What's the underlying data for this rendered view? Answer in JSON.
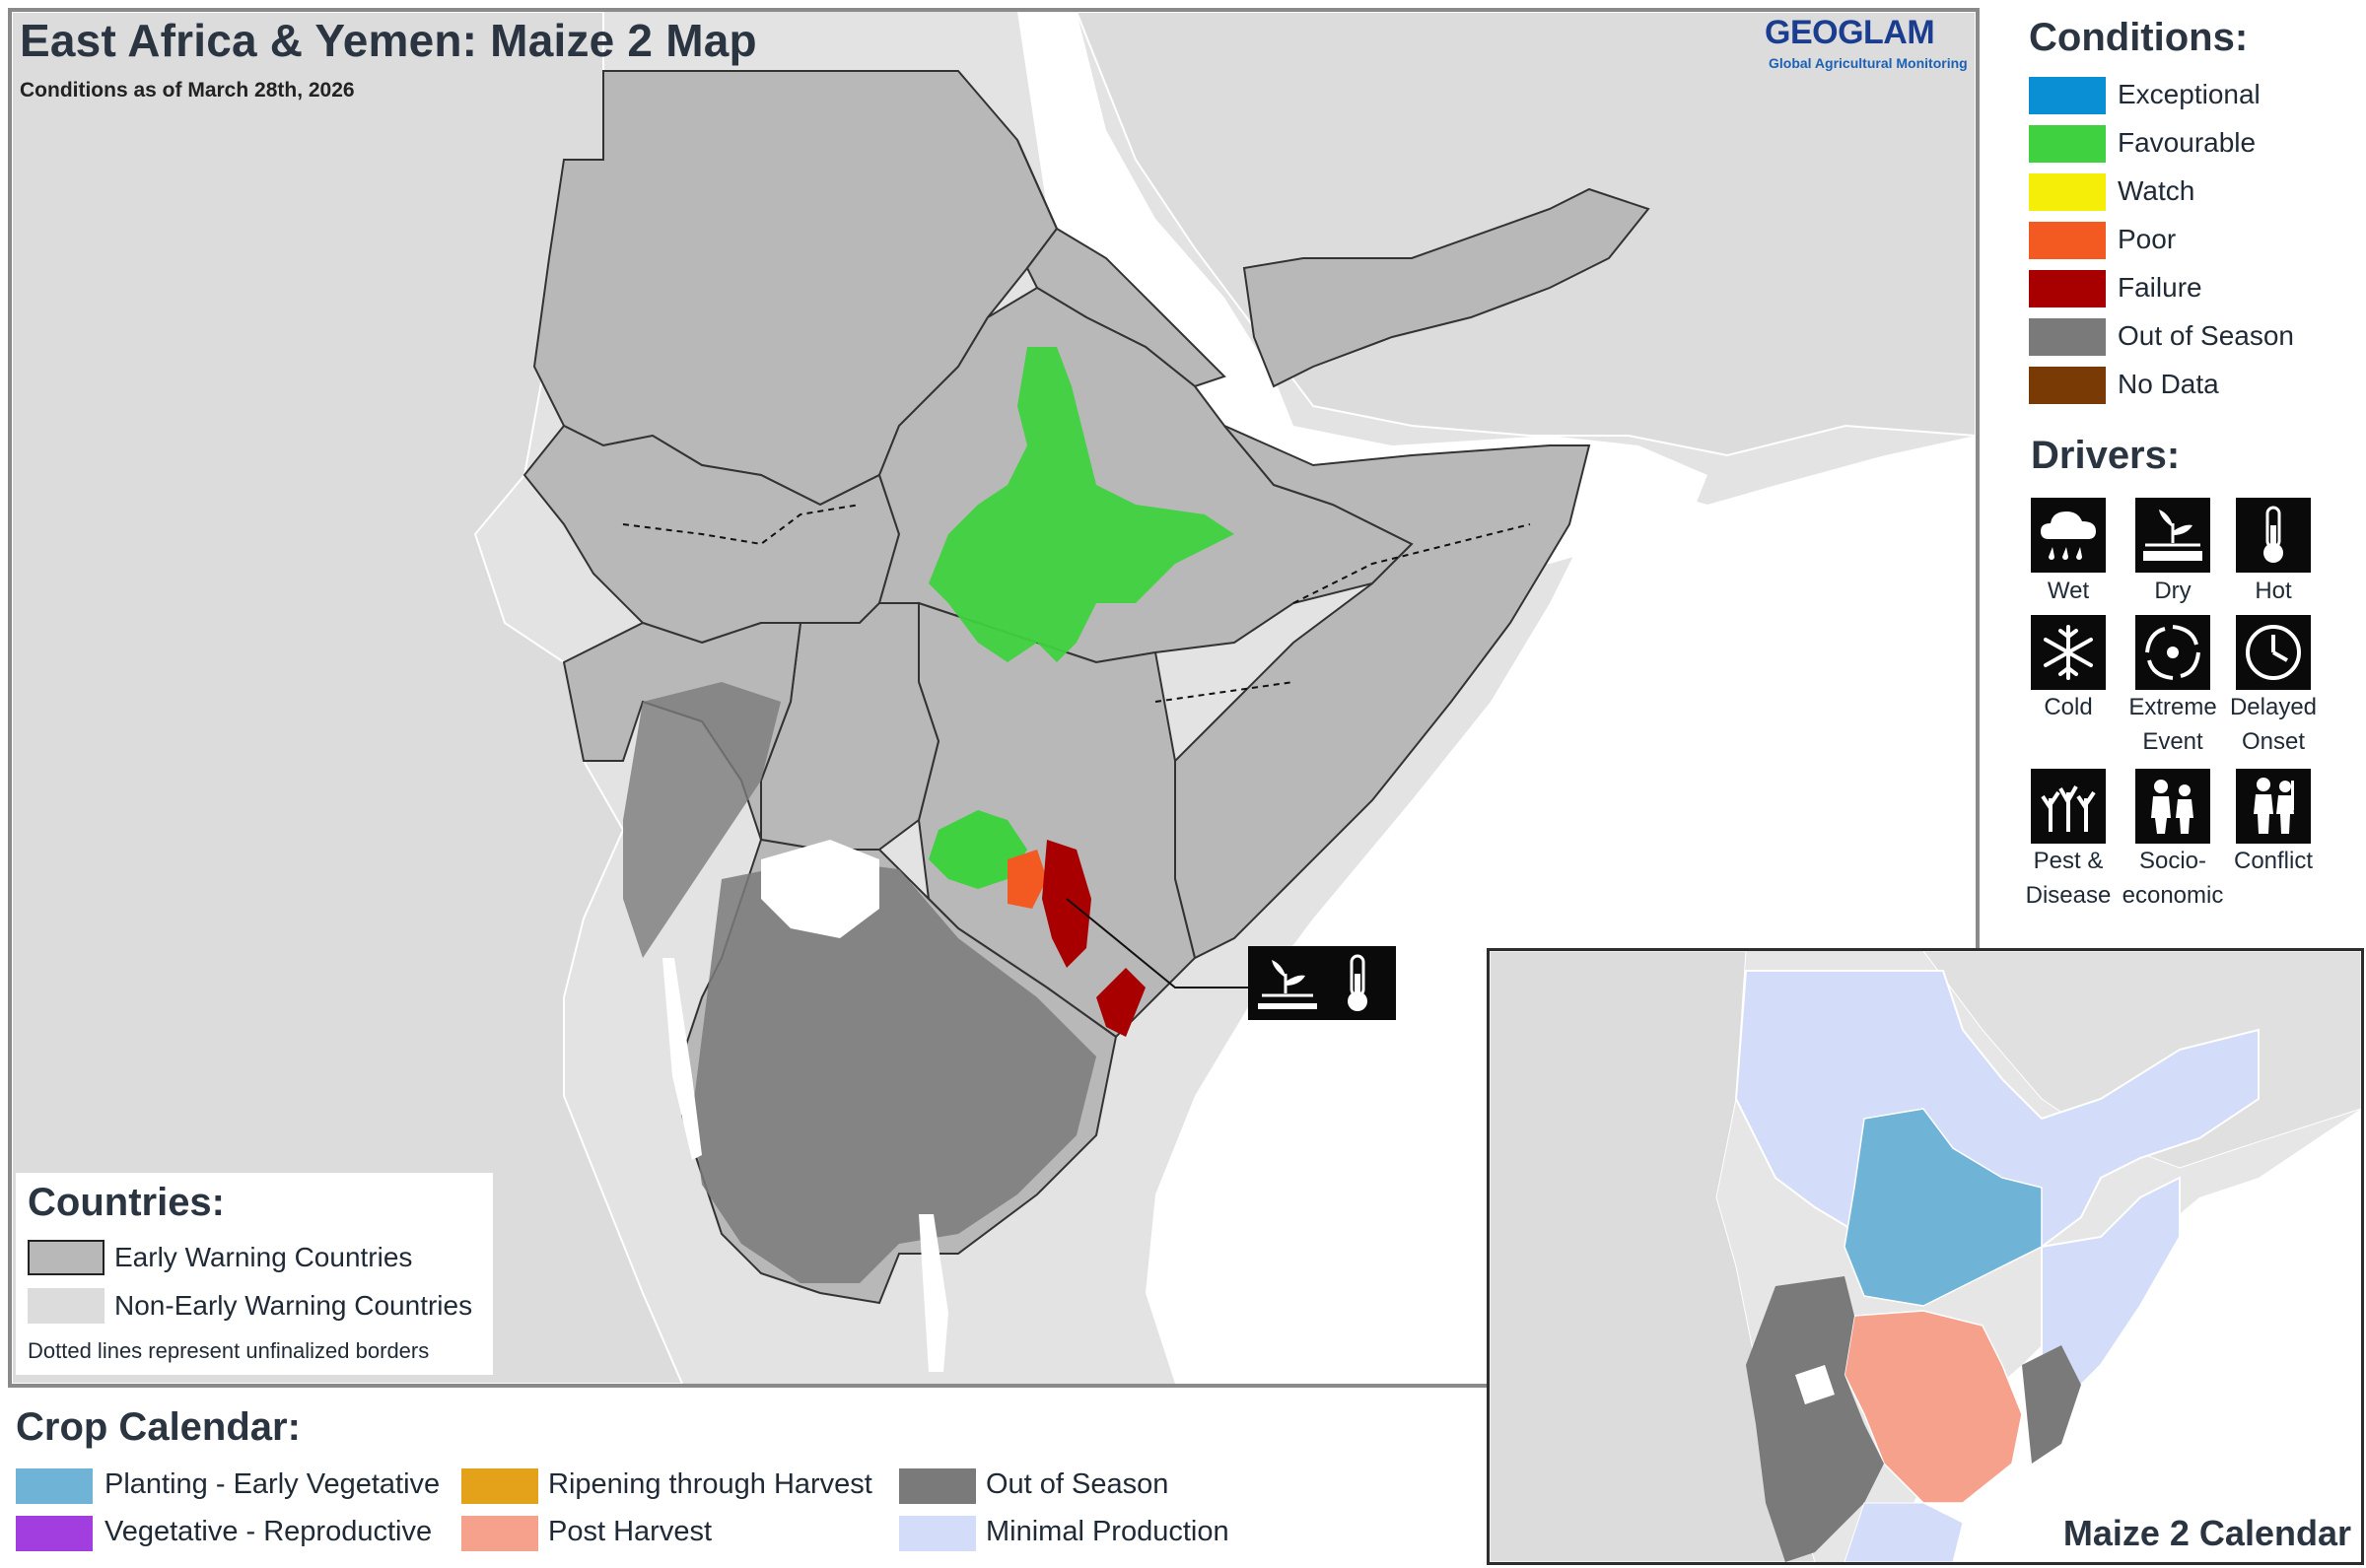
{
  "title": "East Africa & Yemen: Maize 2 Map",
  "subtitle": "Conditions as of March 28th, 2026",
  "logo": {
    "name": "GEOGLAM",
    "tagline": "Global Agricultural Monitoring"
  },
  "conditions": {
    "heading": "Conditions:",
    "items": [
      {
        "label": "Exceptional",
        "color": "#0a8fd4"
      },
      {
        "label": "Favourable",
        "color": "#3fd13f"
      },
      {
        "label": "Watch",
        "color": "#f5ee08"
      },
      {
        "label": "Poor",
        "color": "#f25a22"
      },
      {
        "label": "Failure",
        "color": "#a80000"
      },
      {
        "label": "Out of Season",
        "color": "#7a7a7a"
      },
      {
        "label": "No Data",
        "color": "#7a3a06"
      }
    ]
  },
  "drivers": {
    "heading": "Drivers:",
    "items": [
      {
        "label": "Wet",
        "icon": "wet-icon"
      },
      {
        "label": "Dry",
        "icon": "dry-icon"
      },
      {
        "label": "Hot",
        "icon": "hot-icon"
      },
      {
        "label": "Cold",
        "icon": "cold-icon"
      },
      {
        "label": "Extreme Event",
        "icon": "extreme-event-icon"
      },
      {
        "label": "Delayed Onset",
        "icon": "delayed-onset-icon"
      },
      {
        "label": "Pest & Disease",
        "icon": "pest-disease-icon"
      },
      {
        "label": "Socio-economic",
        "icon": "socio-economic-icon"
      },
      {
        "label": "Conflict",
        "icon": "conflict-icon"
      }
    ]
  },
  "countries_legend": {
    "heading": "Countries:",
    "early_warning": "Early Warning Countries",
    "non_early_warning": "Non-Early Warning Countries",
    "note": "Dotted lines represent unfinalized borders",
    "early_color": "#b8b8b8",
    "non_early_color": "#dcdcdc"
  },
  "crop_calendar": {
    "heading": "Crop Calendar:",
    "items": [
      {
        "label": "Planting - Early Vegetative",
        "color": "#6fb4d6"
      },
      {
        "label": "Vegetative - Reproductive",
        "color": "#a23ee0"
      },
      {
        "label": "Ripening through Harvest",
        "color": "#e3a21a"
      },
      {
        "label": "Post Harvest",
        "color": "#f6a18c"
      },
      {
        "label": "Out of Season",
        "color": "#7a7a7a"
      },
      {
        "label": "Minimal Production",
        "color": "#d3dcf8"
      }
    ]
  },
  "inset": {
    "title": "Maize 2 Calendar"
  },
  "callout": {
    "icons": [
      "dry-icon",
      "hot-icon"
    ]
  }
}
